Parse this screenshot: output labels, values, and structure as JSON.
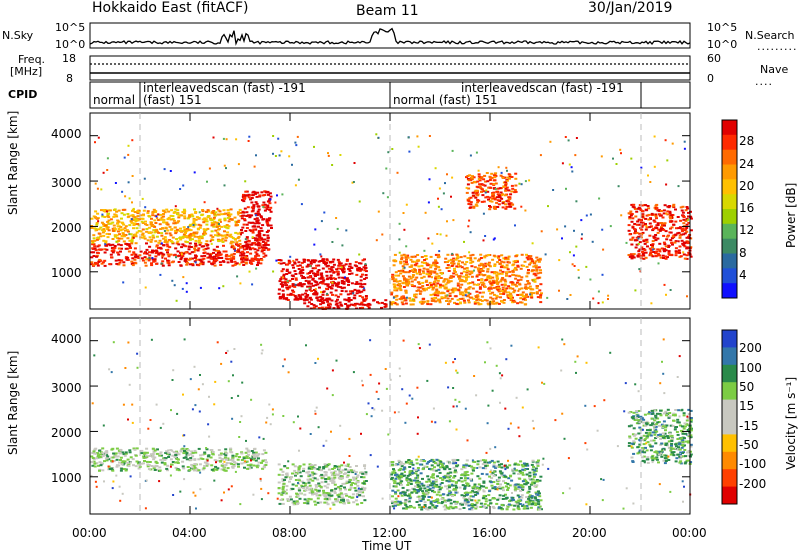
{
  "header": {
    "title": "Hokkaido East (fitACF)",
    "beam": "Beam 11",
    "date": "30/Jan/2019"
  },
  "top_panels": {
    "nsky_label": "N.Sky",
    "nsky_ticks": [
      "10^5",
      "10^0"
    ],
    "right_ticks_top": [
      "10^5",
      "10^0"
    ],
    "nsearch_label": "N.Search",
    "freq_label": "Freq.",
    "freq_unit": "[MHz]",
    "freq_ticks": [
      "18",
      "8"
    ],
    "nave_ticks": [
      "60",
      "0"
    ],
    "nave_label": "Nave",
    "cpid_label": "CPID",
    "cpid_segments": [
      {
        "line1": "normal",
        "line2": ""
      },
      {
        "line1": "interleavedscan (fast) -191",
        "line2": "(fast) 151"
      },
      {
        "line1": "normal (fast) 151",
        "line2": ""
      },
      {
        "line1": "interleavedscan (fast) -191",
        "line2": ""
      }
    ]
  },
  "chart_data": [
    {
      "type": "heatmap",
      "name": "power",
      "ylabel": "Slant Range [km]",
      "y_ticks": [
        1000,
        2000,
        3000,
        4000
      ],
      "ylim": [
        180,
        4500
      ],
      "colorbar_label": "Power [dB]",
      "colorbar_ticks": [
        "28",
        "24",
        "20",
        "16",
        "12",
        "8",
        "4"
      ],
      "colorbar_colors": [
        "#e00000",
        "#ff2a00",
        "#ff6a00",
        "#ff9a00",
        "#ffc000",
        "#d8d800",
        "#9ed000",
        "#5ab45a",
        "#3c8a64",
        "#2a6aa0",
        "#2050d8",
        "#1010ff"
      ],
      "regions": [
        {
          "t0": 0.0,
          "t1": 7.0,
          "r0": 1150,
          "r1": 1650,
          "c": 1
        },
        {
          "t0": 0.0,
          "t1": 6.0,
          "r0": 1650,
          "r1": 2400,
          "c": 4
        },
        {
          "t0": 6.0,
          "t1": 7.2,
          "r0": 1500,
          "r1": 2800,
          "c": 0
        },
        {
          "t0": 7.5,
          "t1": 11.0,
          "r0": 400,
          "r1": 1300,
          "c": 0
        },
        {
          "t0": 8.5,
          "t1": 11.8,
          "r0": 200,
          "r1": 420,
          "c": 0
        },
        {
          "t0": 12.0,
          "t1": 18.0,
          "r0": 300,
          "r1": 1400,
          "c": 3
        },
        {
          "t0": 15.0,
          "t1": 17.0,
          "r0": 2400,
          "r1": 3200,
          "c": 2
        },
        {
          "t0": 21.5,
          "t1": 24.0,
          "r0": 1300,
          "r1": 2500,
          "c": 1
        }
      ]
    },
    {
      "type": "heatmap",
      "name": "velocity",
      "ylabel": "Slant Range [km]",
      "y_ticks": [
        1000,
        2000,
        3000,
        4000
      ],
      "ylim": [
        180,
        4500
      ],
      "xlabel": "Time UT",
      "x_ticks": [
        "00:00",
        "04:00",
        "08:00",
        "12:00",
        "16:00",
        "20:00",
        "00:00"
      ],
      "xlim": [
        0,
        24
      ],
      "colorbar_label": "Velocity [m s⁻¹]",
      "colorbar_ticks": [
        "200",
        "100",
        "50",
        "15",
        "-15",
        "-50",
        "-100",
        "-200"
      ],
      "colorbar_colors": [
        "#2244cc",
        "#3377aa",
        "#2a8a4a",
        "#7ccc44",
        "#c8c8c0",
        "#c8c8c0",
        "#ffc000",
        "#ff8a00",
        "#ff4000",
        "#e00000"
      ],
      "regions": [
        {
          "t0": 0.0,
          "t1": 7.0,
          "r0": 1150,
          "r1": 1650,
          "c": 4
        },
        {
          "t0": 7.5,
          "t1": 11.0,
          "r0": 400,
          "r1": 1300,
          "c": 4
        },
        {
          "t0": 12.0,
          "t1": 18.0,
          "r0": 300,
          "r1": 1400,
          "c": 3
        },
        {
          "t0": 21.5,
          "t1": 24.0,
          "r0": 1300,
          "r1": 2500,
          "c": 3
        }
      ]
    }
  ]
}
